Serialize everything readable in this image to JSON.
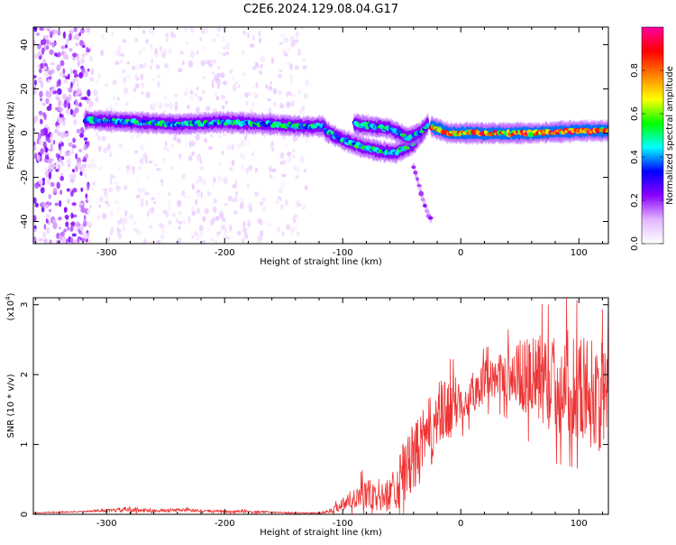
{
  "title": "C2E6.2024.129.08.04.G17",
  "chart_data": [
    {
      "type": "heatmap",
      "xlabel": "Height of straight line (km)",
      "ylabel": "Frequency (Hz)",
      "xlim": [
        -362,
        125
      ],
      "ylim": [
        -50,
        48
      ],
      "xticks": [
        "-300",
        "-200",
        "-100",
        "0",
        "100"
      ],
      "xtick_values": [
        -300,
        -200,
        -100,
        0,
        100
      ],
      "yticks": [
        "-40",
        "-20",
        "0",
        "20",
        "40"
      ],
      "ytick_values": [
        -40,
        -20,
        0,
        20,
        40
      ],
      "colorbar": {
        "label": "Normalized spectral amplitude",
        "range": [
          0,
          1
        ],
        "ticks": [
          "0.0",
          "0.2",
          "0.4",
          "0.6",
          "0.8"
        ],
        "tick_values": [
          0,
          0.2,
          0.4,
          0.6,
          0.8
        ],
        "colors": [
          "#ffffff",
          "#e2b6ff",
          "#8b00ff",
          "#0000ff",
          "#00ffff",
          "#00ff00",
          "#ffff00",
          "#ff8000",
          "#ff0000",
          "#ff00a0"
        ]
      },
      "features": [
        {
          "kind": "noise",
          "x_range": [
            -362,
            -315
          ],
          "y_range": [
            -50,
            48
          ],
          "amplitude": 0.15
        },
        {
          "kind": "noise",
          "x_range": [
            -315,
            -130
          ],
          "y_range": [
            -50,
            48
          ],
          "amplitude": 0.05
        },
        {
          "kind": "band",
          "x": [
            -318,
            -280,
            -240,
            -200,
            -160,
            -130,
            -115
          ],
          "y": [
            6,
            5,
            4,
            5,
            4,
            3,
            3
          ],
          "amplitude": 0.5
        },
        {
          "kind": "band",
          "x": [
            -115,
            -100,
            -85,
            -70,
            -55,
            -40,
            -30
          ],
          "y": [
            1,
            -3,
            -6,
            -8,
            -9,
            -5,
            2
          ],
          "amplitude": 0.5
        },
        {
          "kind": "band",
          "x": [
            -90,
            -75,
            -60,
            -45,
            -35,
            -28
          ],
          "y": [
            4,
            3,
            2,
            -2,
            0,
            4
          ],
          "amplitude": 0.5
        },
        {
          "kind": "streak",
          "x": [
            -40,
            -32,
            -25
          ],
          "y": [
            -15,
            -30,
            -40
          ],
          "amplitude": 0.2
        },
        {
          "kind": "band",
          "x": [
            -25,
            -10,
            20,
            60,
            100,
            125
          ],
          "y": [
            3,
            0,
            0,
            0,
            1,
            1
          ],
          "amplitude": 0.85
        }
      ]
    },
    {
      "type": "line",
      "xlabel": "Height of straight line (km)",
      "ylabel": "SNR (10 * v/v)",
      "y_multiplier": "(x10",
      "y_multiplier_exp": "4",
      "y_multiplier_close": ")",
      "xlim": [
        -362,
        125
      ],
      "ylim": [
        0,
        3.1
      ],
      "xticks": [
        "-300",
        "-200",
        "-100",
        "0",
        "100"
      ],
      "xtick_values": [
        -300,
        -200,
        -100,
        0,
        100
      ],
      "yticks": [
        "0",
        "1",
        "2",
        "3"
      ],
      "ytick_values": [
        0,
        1,
        2,
        3
      ],
      "color": "#ee3333",
      "series": [
        {
          "x": [
            -362,
            -340,
            -320,
            -300,
            -280,
            -260,
            -240,
            -220,
            -200,
            -180,
            -160,
            -140,
            -120,
            -110,
            -100,
            -90,
            -80,
            -70,
            -60,
            -50,
            -40,
            -30,
            -20,
            -10,
            0,
            10,
            20,
            30,
            40,
            50,
            60,
            70,
            80,
            90,
            100,
            110,
            125
          ],
          "values": [
            0.02,
            0.03,
            0.04,
            0.05,
            0.07,
            0.05,
            0.06,
            0.05,
            0.04,
            0.04,
            0.03,
            0.02,
            0.02,
            0.05,
            0.15,
            0.25,
            0.3,
            0.2,
            0.3,
            0.55,
            0.8,
            1.05,
            1.35,
            1.5,
            1.65,
            1.75,
            1.9,
            1.95,
            2.0,
            2.0,
            1.95,
            1.9,
            1.85,
            1.9,
            1.85,
            1.75,
            1.6
          ],
          "spread": [
            0.01,
            0.01,
            0.01,
            0.02,
            0.04,
            0.02,
            0.03,
            0.02,
            0.02,
            0.02,
            0.01,
            0.01,
            0.01,
            0.03,
            0.1,
            0.15,
            0.25,
            0.18,
            0.25,
            0.45,
            0.5,
            0.5,
            0.55,
            0.45,
            0.35,
            0.3,
            0.3,
            0.3,
            0.4,
            0.5,
            0.6,
            0.7,
            0.7,
            0.75,
            0.75,
            0.8,
            0.8
          ]
        }
      ]
    }
  ]
}
